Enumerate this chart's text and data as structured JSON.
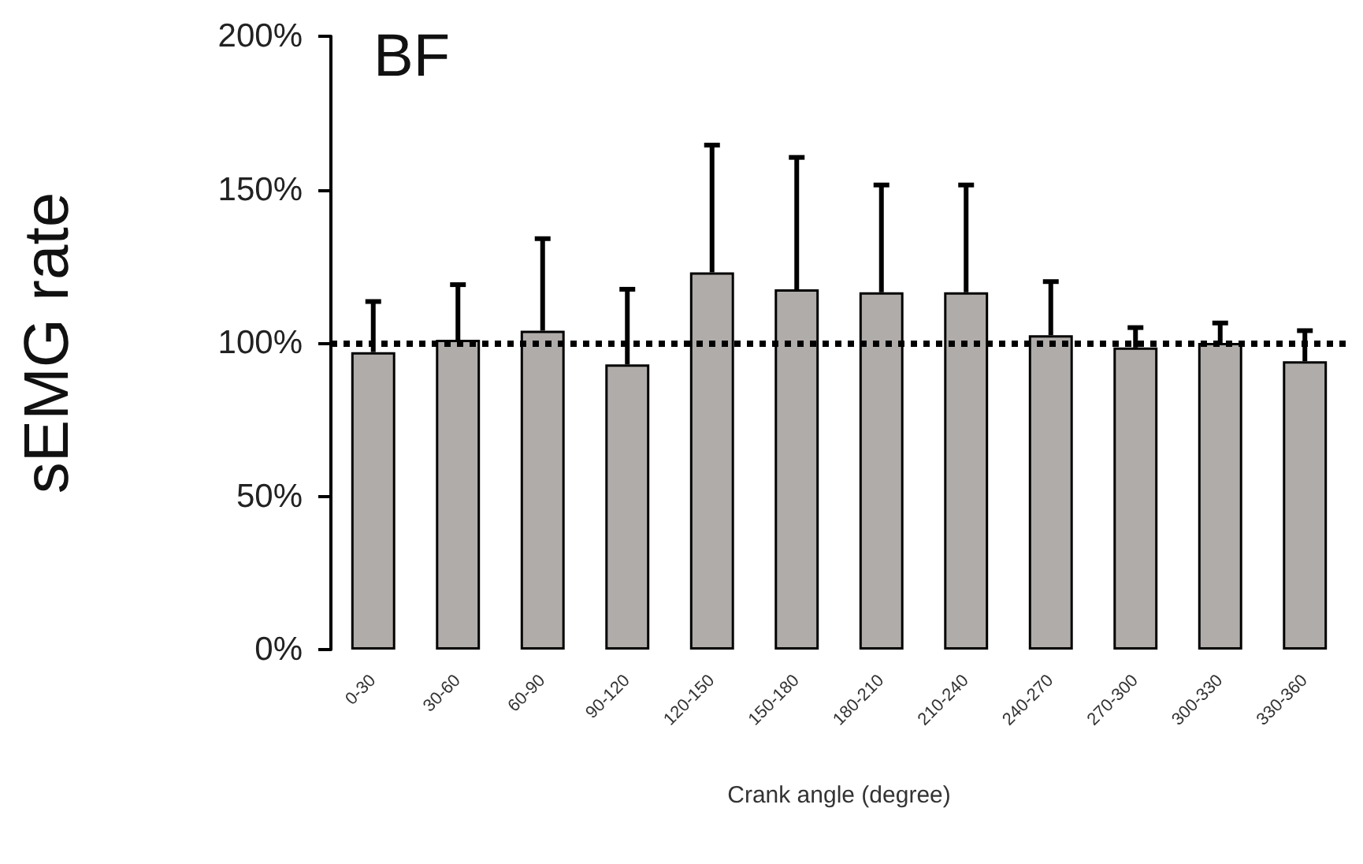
{
  "chart_data": {
    "type": "bar",
    "title": "BF",
    "xlabel": "Crank angle (degree)",
    "ylabel": "sEMG rate",
    "categories": [
      "0-30",
      "30-60",
      "60-90",
      "90-120",
      "120-150",
      "150-180",
      "180-210",
      "210-240",
      "240-270",
      "270-300",
      "300-330",
      "330-360"
    ],
    "values": [
      97,
      101,
      104,
      93,
      123,
      117.5,
      116.5,
      116.5,
      102.5,
      98.5,
      100,
      94
    ],
    "errors": [
      [
        97,
        113.5
      ],
      [
        101,
        119
      ],
      [
        104,
        134
      ],
      [
        93,
        117.5
      ],
      [
        123,
        164.5
      ],
      [
        117.5,
        160.5
      ],
      [
        116.5,
        151.5
      ],
      [
        116.5,
        151.5
      ],
      [
        102.5,
        120
      ],
      [
        98.5,
        105
      ],
      [
        100,
        106.5
      ],
      [
        94,
        104
      ]
    ],
    "color": "#b0acaa",
    "ylim": [
      0,
      200
    ],
    "yticks": [
      {
        "value": 0,
        "label": "0%"
      },
      {
        "value": 50,
        "label": "50%"
      },
      {
        "value": 100,
        "label": "100%"
      },
      {
        "value": 150,
        "label": "150%"
      },
      {
        "value": 200,
        "label": "200%"
      }
    ],
    "ref_lines": [
      {
        "axis": "y",
        "value": 100,
        "label": null,
        "color": "#000000",
        "line_style": "dotted"
      }
    ],
    "grid": false
  }
}
